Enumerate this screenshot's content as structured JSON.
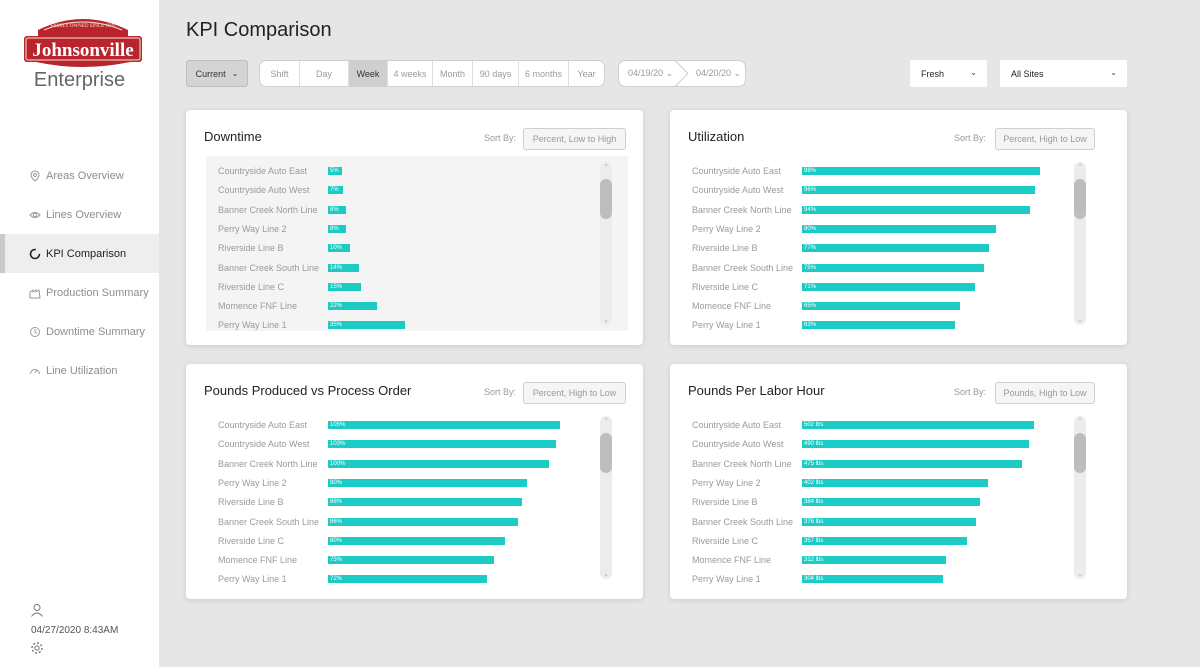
{
  "brand": {
    "logo_text": "Johnsonville",
    "tagline": "FAMILY OWNED SINCE 1945",
    "subtitle": "Enterprise"
  },
  "nav": [
    {
      "label": "Areas Overview",
      "icon": "map-pin-icon",
      "active": false
    },
    {
      "label": "Lines Overview",
      "icon": "eye-icon",
      "active": false
    },
    {
      "label": "KPI Comparison",
      "icon": "gauge-icon",
      "active": true
    },
    {
      "label": "Production Summary",
      "icon": "factory-icon",
      "active": false
    },
    {
      "label": "Downtime Summary",
      "icon": "clock-icon",
      "active": false
    },
    {
      "label": "Line Utilization",
      "icon": "speedometer-icon",
      "active": false
    }
  ],
  "footer": {
    "datetime": "04/27/2020 8:43AM"
  },
  "header": {
    "title": "KPI Comparison",
    "current_label": "Current",
    "ranges": [
      "Shift",
      "Day",
      "Week",
      "4 weeks",
      "Month",
      "90 days",
      "6 months",
      "Year"
    ],
    "active_range": "Week",
    "date_from": "04/19/20",
    "date_to": "04/20/20",
    "filter_1": "Fresh",
    "filter_2": "All Sites"
  },
  "colors": {
    "bar": "#1ccbc4",
    "active_range": "#cfcfcf"
  },
  "panels": [
    {
      "title": "Downtime",
      "sort_label": "Sort By:",
      "sort_value": "Percent, Low to High",
      "chart_data": {
        "type": "bar",
        "orientation": "horizontal",
        "xlim": [
          0,
          110
        ],
        "categories": [
          "Countryside Auto East",
          "Countryside Auto West",
          "Banner Creek North Line",
          "Perry Way Line 2",
          "Riverside Line B",
          "Banner Creek South Line",
          "Riverside Line C",
          "Momence FNF Line",
          "Perry Way Line 1"
        ],
        "values": [
          5,
          7,
          8,
          8,
          10,
          14,
          15,
          22,
          35
        ],
        "labels": [
          "5%",
          "7%",
          "8%",
          "8%",
          "10%",
          "14%",
          "15%",
          "22%",
          "35%"
        ]
      }
    },
    {
      "title": "Utilization",
      "sort_label": "Sort By:",
      "sort_value": "Percent, High to Low",
      "chart_data": {
        "type": "bar",
        "orientation": "horizontal",
        "xlim": [
          0,
          100
        ],
        "categories": [
          "Countryside Auto East",
          "Countryside Auto West",
          "Banner Creek North Line",
          "Perry Way Line 2",
          "Riverside Line B",
          "Banner Creek South Line",
          "Riverside Line C",
          "Momence FNF Line",
          "Perry Way Line 1"
        ],
        "values": [
          98,
          96,
          94,
          80,
          77,
          75,
          71,
          65,
          63
        ],
        "labels": [
          "98%",
          "96%",
          "94%",
          "80%",
          "77%",
          "75%",
          "71%",
          "65%",
          "63%"
        ]
      }
    },
    {
      "title": "Pounds Produced vs Process Order",
      "sort_label": "Sort By:",
      "sort_value": "Percent, High to Low",
      "chart_data": {
        "type": "bar",
        "orientation": "horizontal",
        "xlim": [
          0,
          110
        ],
        "categories": [
          "Countryside Auto East",
          "Countryside Auto West",
          "Banner Creek North Line",
          "Perry Way Line 2",
          "Riverside Line B",
          "Banner Creek South Line",
          "Riverside Line C",
          "Momence FNF Line",
          "Perry Way Line 1"
        ],
        "values": [
          105,
          103,
          100,
          90,
          88,
          86,
          80,
          75,
          72
        ],
        "labels": [
          "105%",
          "103%",
          "100%",
          "90%",
          "88%",
          "86%",
          "80%",
          "75%",
          "72%"
        ]
      }
    },
    {
      "title": "Pounds Per Labor Hour",
      "sort_label": "Sort By:",
      "sort_value": "Pounds, High to Low",
      "chart_data": {
        "type": "bar",
        "orientation": "horizontal",
        "xlim": [
          0,
          525
        ],
        "categories": [
          "Countryside Auto East",
          "Countryside Auto West",
          "Banner Creek North Line",
          "Perry Way Line 2",
          "Riverside Line B",
          "Banner Creek South Line",
          "Riverside Line C",
          "Momence FNF Line",
          "Perry Way Line 1"
        ],
        "values": [
          502,
          490,
          475,
          402,
          384,
          376,
          357,
          312,
          304
        ],
        "labels": [
          "502 lbs",
          "490 lbs",
          "475 lbs",
          "402 lbs",
          "384 lbs",
          "376 lbs",
          "357 lbs",
          "312 lbs",
          "304 lbs"
        ]
      }
    }
  ]
}
